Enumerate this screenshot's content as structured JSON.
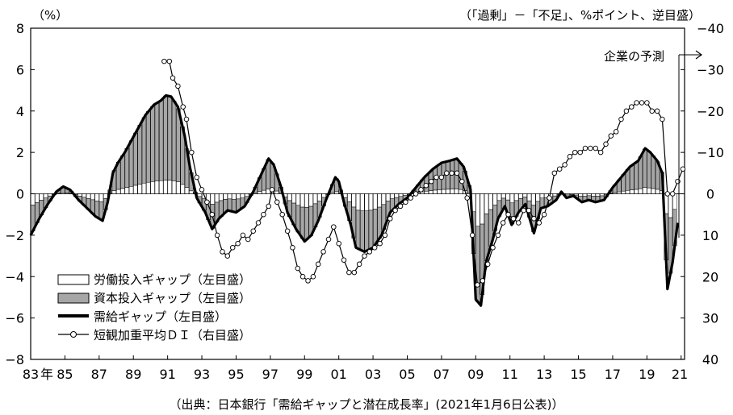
{
  "chart_data": {
    "type": "bar",
    "left_unit": "（%）",
    "right_unit": "（「過剰」－「不足」、%ポイント、逆目盛）",
    "source": "（出典：日本銀行「需給ギャップと潜在成長率」(2021年1月6日公表)）",
    "forecast_label": "企業の予測",
    "left_axis": {
      "min": -8,
      "max": 8,
      "ticks": [
        "8",
        "6",
        "4",
        "2",
        "0",
        "−2",
        "−4",
        "−6",
        "−8"
      ]
    },
    "right_axis": {
      "min": 40,
      "max": -40,
      "inverted": true,
      "ticks": [
        "−40",
        "−30",
        "−20",
        "−10",
        "0",
        "10",
        "20",
        "30",
        "40"
      ]
    },
    "x_axis": {
      "start_year": 1983,
      "end_year": 2021.2,
      "ticks": [
        "83",
        "85",
        "87",
        "89",
        "91",
        "93",
        "95",
        "97",
        "99",
        "01",
        "03",
        "05",
        "07",
        "09",
        "11",
        "13",
        "15",
        "17",
        "19",
        "21"
      ],
      "first_suffix": "年"
    },
    "legend": [
      {
        "name": "労働投入ギャップ（左目盛）",
        "kind": "white-bar"
      },
      {
        "name": "資本投入ギャップ（左目盛）",
        "kind": "gray-bar"
      },
      {
        "name": "需給ギャップ（左目盛）",
        "kind": "thick-line"
      },
      {
        "name": "短観加重平均ＤＩ（右目盛）",
        "kind": "circle-line"
      }
    ],
    "series": [
      {
        "name": "需給ギャップ（左目盛）",
        "axis": "left",
        "points": [
          [
            1983.0,
            -2.0
          ],
          [
            1983.5,
            -1.2
          ],
          [
            1984.0,
            -0.5
          ],
          [
            1984.5,
            0.1
          ],
          [
            1984.9,
            0.35
          ],
          [
            1985.3,
            0.2
          ],
          [
            1985.8,
            -0.3
          ],
          [
            1986.3,
            -0.7
          ],
          [
            1986.8,
            -1.1
          ],
          [
            1987.2,
            -1.3
          ],
          [
            1987.5,
            -0.4
          ],
          [
            1987.8,
            1.0
          ],
          [
            1988.1,
            1.5
          ],
          [
            1988.5,
            2.0
          ],
          [
            1988.9,
            2.6
          ],
          [
            1989.3,
            3.2
          ],
          [
            1989.7,
            3.8
          ],
          [
            1990.2,
            4.3
          ],
          [
            1990.6,
            4.5
          ],
          [
            1990.9,
            4.75
          ],
          [
            1991.2,
            4.7
          ],
          [
            1991.6,
            4.2
          ],
          [
            1992.0,
            2.8
          ],
          [
            1992.3,
            1.3
          ],
          [
            1992.7,
            -0.2
          ],
          [
            1993.2,
            -0.9
          ],
          [
            1993.6,
            -1.7
          ],
          [
            1994.0,
            -1.2
          ],
          [
            1994.5,
            -0.8
          ],
          [
            1995.0,
            -0.9
          ],
          [
            1995.5,
            -0.6
          ],
          [
            1996.0,
            0.1
          ],
          [
            1996.5,
            1.0
          ],
          [
            1996.9,
            1.7
          ],
          [
            1997.2,
            1.4
          ],
          [
            1997.6,
            0.4
          ],
          [
            1998.0,
            -0.9
          ],
          [
            1998.5,
            -1.7
          ],
          [
            1999.0,
            -2.3
          ],
          [
            1999.4,
            -2.0
          ],
          [
            1999.8,
            -1.3
          ],
          [
            2000.3,
            -0.2
          ],
          [
            2000.8,
            0.8
          ],
          [
            2001.0,
            0.6
          ],
          [
            2001.3,
            -0.4
          ],
          [
            2001.7,
            -1.5
          ],
          [
            2002.0,
            -2.6
          ],
          [
            2002.5,
            -2.8
          ],
          [
            2003.0,
            -2.6
          ],
          [
            2003.5,
            -2.0
          ],
          [
            2004.0,
            -0.9
          ],
          [
            2004.5,
            -0.5
          ],
          [
            2005.0,
            -0.2
          ],
          [
            2005.5,
            0.3
          ],
          [
            2006.0,
            0.8
          ],
          [
            2006.5,
            1.2
          ],
          [
            2007.0,
            1.5
          ],
          [
            2007.5,
            1.6
          ],
          [
            2007.9,
            1.7
          ],
          [
            2008.3,
            1.3
          ],
          [
            2008.7,
            0.2
          ],
          [
            2009.0,
            -5.1
          ],
          [
            2009.3,
            -5.4
          ],
          [
            2009.6,
            -3.3
          ],
          [
            2010.0,
            -2.2
          ],
          [
            2010.3,
            -1.2
          ],
          [
            2010.7,
            -0.6
          ],
          [
            2011.1,
            -1.5
          ],
          [
            2011.5,
            -0.9
          ],
          [
            2011.9,
            -0.5
          ],
          [
            2012.4,
            -1.9
          ],
          [
            2012.8,
            -0.7
          ],
          [
            2013.2,
            -0.6
          ],
          [
            2013.7,
            -0.3
          ],
          [
            2014.0,
            0.1
          ],
          [
            2014.3,
            -0.2
          ],
          [
            2014.7,
            -0.1
          ],
          [
            2015.2,
            -0.4
          ],
          [
            2015.6,
            -0.3
          ],
          [
            2016.0,
            -0.4
          ],
          [
            2016.5,
            -0.3
          ],
          [
            2017.0,
            0.3
          ],
          [
            2017.5,
            0.8
          ],
          [
            2018.0,
            1.3
          ],
          [
            2018.5,
            1.6
          ],
          [
            2018.9,
            2.2
          ],
          [
            2019.2,
            2.0
          ],
          [
            2019.6,
            1.6
          ],
          [
            2019.9,
            1.0
          ],
          [
            2020.2,
            -4.6
          ],
          [
            2020.5,
            -3.3
          ],
          [
            2020.8,
            -1.4
          ]
        ]
      },
      {
        "name": "短観加重平均ＤＩ（右目盛）",
        "axis": "right",
        "points": [
          [
            1990.8,
            -32
          ],
          [
            1991.1,
            -32
          ],
          [
            1991.3,
            -28
          ],
          [
            1991.6,
            -26
          ],
          [
            1991.9,
            -21
          ],
          [
            1992.1,
            -18
          ],
          [
            1992.4,
            -10
          ],
          [
            1992.7,
            -4
          ],
          [
            1993.0,
            -1
          ],
          [
            1993.3,
            2
          ],
          [
            1993.6,
            5
          ],
          [
            1993.9,
            10
          ],
          [
            1994.2,
            14
          ],
          [
            1994.5,
            15
          ],
          [
            1994.8,
            13
          ],
          [
            1995.1,
            12
          ],
          [
            1995.4,
            10
          ],
          [
            1995.7,
            11
          ],
          [
            1996.0,
            9
          ],
          [
            1996.3,
            7
          ],
          [
            1996.6,
            5
          ],
          [
            1996.9,
            3
          ],
          [
            1997.1,
            -1
          ],
          [
            1997.4,
            2
          ],
          [
            1997.7,
            5
          ],
          [
            1998.0,
            9
          ],
          [
            1998.3,
            13
          ],
          [
            1998.6,
            18
          ],
          [
            1998.9,
            20
          ],
          [
            1999.2,
            21
          ],
          [
            1999.5,
            20
          ],
          [
            1999.8,
            17
          ],
          [
            2000.1,
            14
          ],
          [
            2000.4,
            11
          ],
          [
            2000.7,
            8
          ],
          [
            2001.0,
            12
          ],
          [
            2001.3,
            16
          ],
          [
            2001.6,
            19
          ],
          [
            2001.9,
            19
          ],
          [
            2002.2,
            17
          ],
          [
            2002.5,
            15
          ],
          [
            2002.8,
            14
          ],
          [
            2003.1,
            13
          ],
          [
            2003.4,
            12
          ],
          [
            2003.7,
            10
          ],
          [
            2004.0,
            6
          ],
          [
            2004.3,
            4
          ],
          [
            2004.6,
            3
          ],
          [
            2004.9,
            2
          ],
          [
            2005.2,
            1
          ],
          [
            2005.5,
            0
          ],
          [
            2005.8,
            -1
          ],
          [
            2006.1,
            -2
          ],
          [
            2006.4,
            -3
          ],
          [
            2006.7,
            -4
          ],
          [
            2007.0,
            -4
          ],
          [
            2007.3,
            -5
          ],
          [
            2007.6,
            -5
          ],
          [
            2007.9,
            -5
          ],
          [
            2008.2,
            -3
          ],
          [
            2008.5,
            1
          ],
          [
            2008.8,
            10
          ],
          [
            2009.1,
            22
          ],
          [
            2009.4,
            21
          ],
          [
            2009.7,
            17
          ],
          [
            2010.0,
            13
          ],
          [
            2010.3,
            10
          ],
          [
            2010.6,
            7
          ],
          [
            2010.9,
            5
          ],
          [
            2011.2,
            6
          ],
          [
            2011.5,
            7
          ],
          [
            2011.8,
            4
          ],
          [
            2012.1,
            4
          ],
          [
            2012.4,
            6
          ],
          [
            2012.7,
            7
          ],
          [
            2013.0,
            5
          ],
          [
            2013.3,
            1
          ],
          [
            2013.6,
            -5
          ],
          [
            2013.9,
            -6
          ],
          [
            2014.2,
            -7
          ],
          [
            2014.5,
            -9
          ],
          [
            2014.8,
            -10
          ],
          [
            2015.1,
            -10
          ],
          [
            2015.4,
            -11
          ],
          [
            2015.7,
            -11
          ],
          [
            2016.0,
            -11
          ],
          [
            2016.3,
            -10
          ],
          [
            2016.6,
            -12
          ],
          [
            2016.9,
            -14
          ],
          [
            2017.2,
            -15
          ],
          [
            2017.5,
            -18
          ],
          [
            2017.8,
            -20
          ],
          [
            2018.1,
            -21
          ],
          [
            2018.4,
            -22
          ],
          [
            2018.7,
            -22
          ],
          [
            2019.0,
            -22
          ],
          [
            2019.3,
            -20
          ],
          [
            2019.6,
            -20
          ],
          [
            2019.9,
            -18
          ],
          [
            2020.2,
            0
          ],
          [
            2020.5,
            0
          ],
          [
            2020.8,
            -3
          ],
          [
            2021.1,
            -6
          ]
        ]
      }
    ]
  }
}
